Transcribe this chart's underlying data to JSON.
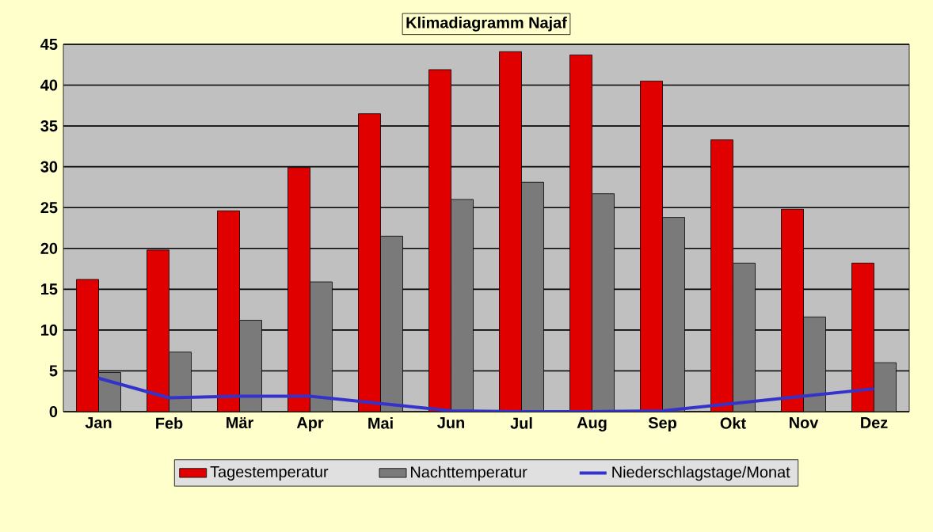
{
  "chart_data": {
    "type": "bar",
    "title": "Klimadiagramm Najaf",
    "categories": [
      "Jan",
      "Feb",
      "Mär",
      "Apr",
      "Mai",
      "Jun",
      "Jul",
      "Aug",
      "Sep",
      "Okt",
      "Nov",
      "Dez"
    ],
    "series": [
      {
        "name": "Tagestemperatur",
        "color": "#e00000",
        "values": [
          16.2,
          19.8,
          24.6,
          29.9,
          36.5,
          41.9,
          44.1,
          43.7,
          40.5,
          33.3,
          24.8,
          18.2
        ]
      },
      {
        "name": "Nachttemperatur",
        "color": "#7a7a7a",
        "values": [
          4.8,
          7.3,
          11.2,
          15.9,
          21.5,
          26.0,
          28.1,
          26.7,
          23.8,
          18.2,
          11.6,
          6.0
        ]
      },
      {
        "name": "Niederschlagstage/Monat",
        "type": "line",
        "color": "#3333cc",
        "values": [
          4.1,
          1.7,
          1.9,
          1.9,
          1.0,
          0.1,
          0,
          0,
          0.1,
          1.0,
          1.9,
          2.8
        ]
      }
    ],
    "ylim": [
      0,
      45
    ],
    "yticks": [
      0,
      5,
      10,
      15,
      20,
      25,
      30,
      35,
      40,
      45
    ],
    "grid": "y",
    "legend": "bottom",
    "marker": "none",
    "line_style": "solid"
  }
}
